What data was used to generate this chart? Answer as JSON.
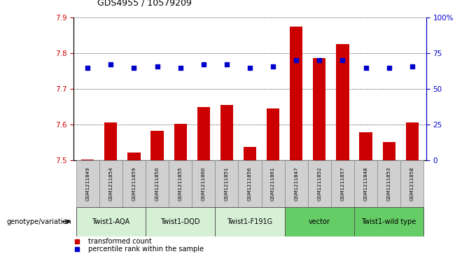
{
  "title": "GDS4955 / 10579209",
  "samples": [
    "GSM1211849",
    "GSM1211854",
    "GSM1211859",
    "GSM1211850",
    "GSM1211855",
    "GSM1211860",
    "GSM1211851",
    "GSM1211856",
    "GSM1211861",
    "GSM1211847",
    "GSM1211852",
    "GSM1211857",
    "GSM1211848",
    "GSM1211853",
    "GSM1211858"
  ],
  "bar_values": [
    7.502,
    7.605,
    7.522,
    7.582,
    7.602,
    7.648,
    7.654,
    7.537,
    7.645,
    7.875,
    7.786,
    7.826,
    7.578,
    7.55,
    7.605
  ],
  "percentile_values": [
    65,
    67,
    65,
    66,
    65,
    67,
    67,
    65,
    66,
    70,
    70,
    70,
    65,
    65,
    66
  ],
  "groups": [
    {
      "label": "Twist1-AQA",
      "start": 0,
      "end": 2,
      "color": "#d6f0d6"
    },
    {
      "label": "Twist1-DQD",
      "start": 3,
      "end": 5,
      "color": "#d6f0d6"
    },
    {
      "label": "Twist1-F191G",
      "start": 6,
      "end": 8,
      "color": "#d6f0d6"
    },
    {
      "label": "vector",
      "start": 9,
      "end": 11,
      "color": "#66cc66"
    },
    {
      "label": "Twist1-wild type",
      "start": 12,
      "end": 14,
      "color": "#66cc66"
    }
  ],
  "ylim_left": [
    7.5,
    7.9
  ],
  "ylim_right": [
    0,
    100
  ],
  "yticks_left": [
    7.5,
    7.6,
    7.7,
    7.8,
    7.9
  ],
  "yticks_right": [
    0,
    25,
    50,
    75,
    100
  ],
  "ytick_labels_right": [
    "0",
    "25",
    "50",
    "75",
    "100%"
  ],
  "bar_color": "#cc0000",
  "dot_color": "#0000cc",
  "bar_width": 0.55,
  "sample_cell_color": "#d0d0d0",
  "genotype_label": "genotype/variation"
}
